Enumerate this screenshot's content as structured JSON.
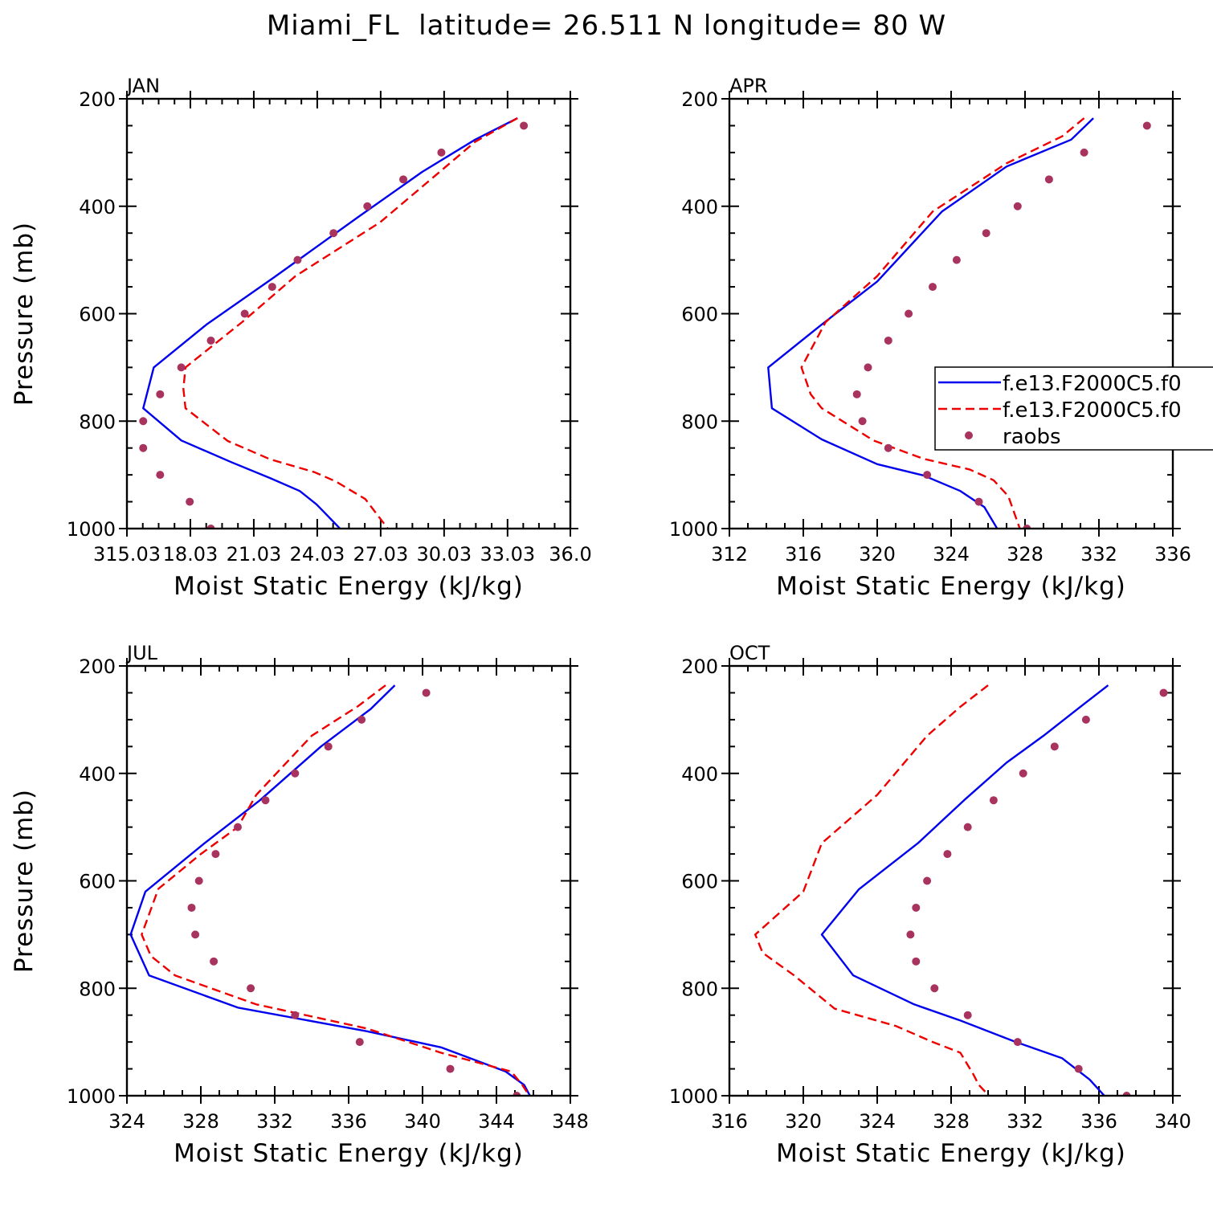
{
  "title": "Miami_FL  latitude= 26.511 N longitude= 80 W",
  "colors": {
    "model1": "#0000ee",
    "model2": "#ee0000",
    "raobs": "#a8335f"
  },
  "chart_data": [
    {
      "type": "line",
      "panel_label": "JAN",
      "xlabel": "Moist Static Energy (kJ/kg)",
      "ylabel": "Pressure (mb)",
      "xlim": [
        315.03,
        336.0
      ],
      "ylim": [
        200,
        1000
      ],
      "y_inverted": true,
      "xticks": [
        315.03,
        318.03,
        321.03,
        324.03,
        327.03,
        330.03,
        333.03,
        336.0
      ],
      "xtick_labels": [
        "315.03",
        "18.03",
        "21.03",
        "24.03",
        "27.03",
        "30.03",
        "33.03",
        "36.0"
      ],
      "yticks": [
        200,
        400,
        600,
        800,
        1000
      ],
      "series": [
        {
          "name": "f.e13.F2000C5.f0",
          "style": "solid",
          "color": "#0000ee",
          "x": [
            333.5,
            331.5,
            329.0,
            326.0,
            322.0,
            318.8,
            316.3,
            315.8,
            317.6,
            320.0,
            321.8,
            323.2,
            324.0,
            325.4
          ],
          "y": [
            236,
            276,
            336,
            419,
            532,
            620,
            700,
            776,
            836,
            877,
            906,
            930,
            955,
            1012
          ]
        },
        {
          "name": "f.e13.F2000C5.f0",
          "style": "dashed",
          "color": "#ee0000",
          "x": [
            333.5,
            331.5,
            330.0,
            327.0,
            323.0,
            320.5,
            317.8,
            317.7,
            317.8,
            319.8,
            321.8,
            323.9,
            324.9,
            326.3,
            327.6
          ],
          "y": [
            236,
            280,
            330,
            430,
            530,
            615,
            700,
            740,
            776,
            837,
            871,
            895,
            912,
            945,
            1012
          ]
        },
        {
          "name": "raobs",
          "style": "dots",
          "color": "#a8335f",
          "x": [
            333.8,
            329.9,
            328.1,
            326.4,
            324.8,
            323.1,
            321.9,
            320.6,
            319.0,
            317.6,
            316.6,
            315.8,
            315.8,
            316.6,
            318.0,
            319.0
          ],
          "y": [
            250,
            300,
            350,
            400,
            450,
            500,
            550,
            600,
            650,
            700,
            750,
            800,
            850,
            900,
            950,
            1000
          ]
        }
      ]
    },
    {
      "type": "line",
      "panel_label": "APR",
      "xlabel": "Moist Static Energy (kJ/kg)",
      "ylabel": "",
      "xlim": [
        312,
        336
      ],
      "ylim": [
        200,
        1000
      ],
      "y_inverted": true,
      "xticks": [
        312,
        316,
        320,
        324,
        328,
        332,
        336
      ],
      "xtick_labels": [
        "312",
        "316",
        "320",
        "324",
        "328",
        "332",
        "336"
      ],
      "yticks": [
        200,
        400,
        600,
        800,
        1000
      ],
      "series": [
        {
          "name": "f.e13.F2000C5.f0",
          "style": "solid",
          "color": "#0000ee",
          "x": [
            331.7,
            330.5,
            327.0,
            323.5,
            320.0,
            317.0,
            314.1,
            314.3,
            317.0,
            320.0,
            322.5,
            324.5,
            325.8,
            326.7
          ],
          "y": [
            236,
            276,
            326,
            410,
            540,
            620,
            700,
            776,
            834,
            880,
            901,
            930,
            960,
            1012
          ]
        },
        {
          "name": "f.e13.F2000C5.f0",
          "style": "dashed",
          "color": "#ee0000",
          "x": [
            331.2,
            330.0,
            327.0,
            323.0,
            320.0,
            317.2,
            315.9,
            316.4,
            317.0,
            319.8,
            322.5,
            325.0,
            326.3,
            327.1,
            327.8
          ],
          "y": [
            236,
            270,
            320,
            410,
            530,
            616,
            700,
            750,
            776,
            836,
            870,
            890,
            910,
            940,
            1008
          ]
        },
        {
          "name": "raobs",
          "style": "dots",
          "color": "#a8335f",
          "x": [
            334.6,
            331.2,
            329.3,
            327.6,
            325.9,
            324.3,
            323.0,
            321.7,
            320.6,
            319.5,
            318.9,
            319.2,
            320.6,
            322.7,
            325.5,
            328.1
          ],
          "y": [
            250,
            300,
            350,
            400,
            450,
            500,
            550,
            600,
            650,
            700,
            750,
            800,
            850,
            900,
            950,
            1000
          ]
        }
      ],
      "legend": {
        "position": "right",
        "entries": [
          {
            "label": "f.e13.F2000C5.f0",
            "style": "solid",
            "color": "#0000ee"
          },
          {
            "label": "f.e13.F2000C5.f0",
            "style": "dashed",
            "color": "#ee0000"
          },
          {
            "label": "raobs",
            "style": "dots",
            "color": "#a8335f"
          }
        ]
      }
    },
    {
      "type": "line",
      "panel_label": "JUL",
      "xlabel": "Moist Static Energy (kJ/kg)",
      "ylabel": "Pressure (mb)",
      "xlim": [
        324,
        348
      ],
      "ylim": [
        200,
        1000
      ],
      "y_inverted": true,
      "xticks": [
        324,
        328,
        332,
        336,
        340,
        344,
        348
      ],
      "xtick_labels": [
        "324",
        "328",
        "332",
        "336",
        "340",
        "344",
        "348"
      ],
      "yticks": [
        200,
        400,
        600,
        800,
        1000
      ],
      "series": [
        {
          "name": "f.e13.F2000C5.f0",
          "style": "solid",
          "color": "#0000ee",
          "x": [
            338.5,
            337.2,
            334.5,
            331.2,
            328.2,
            325.0,
            324.2,
            325.2,
            330.0,
            337.0,
            341.0,
            344.5,
            345.5,
            346.0
          ],
          "y": [
            236,
            280,
            350,
            450,
            530,
            620,
            700,
            776,
            836,
            880,
            910,
            955,
            980,
            1012
          ]
        },
        {
          "name": "f.e13.F2000C5.f0",
          "style": "dashed",
          "color": "#ee0000",
          "x": [
            338.0,
            336.5,
            334.0,
            331.0,
            330.0,
            328.0,
            325.7,
            324.8,
            325.3,
            326.6,
            331.0,
            337.0,
            341.0,
            344.8,
            345.4,
            346.0
          ],
          "y": [
            236,
            275,
            330,
            440,
            500,
            550,
            615,
            700,
            740,
            776,
            830,
            875,
            920,
            955,
            980,
            1012
          ]
        },
        {
          "name": "raobs",
          "style": "dots",
          "color": "#a8335f",
          "x": [
            340.2,
            336.7,
            334.9,
            333.1,
            331.5,
            330.0,
            328.8,
            327.9,
            327.5,
            327.7,
            328.7,
            330.7,
            333.1,
            336.6,
            341.5,
            345.1
          ],
          "y": [
            250,
            300,
            350,
            400,
            450,
            500,
            550,
            600,
            650,
            700,
            750,
            800,
            850,
            900,
            950,
            1000
          ]
        }
      ]
    },
    {
      "type": "line",
      "panel_label": "OCT",
      "xlabel": "Moist Static Energy (kJ/kg)",
      "ylabel": "",
      "xlim": [
        316,
        340
      ],
      "ylim": [
        200,
        1000
      ],
      "y_inverted": true,
      "xticks": [
        316,
        320,
        324,
        328,
        332,
        336,
        340
      ],
      "xtick_labels": [
        "316",
        "320",
        "324",
        "328",
        "332",
        "336",
        "340"
      ],
      "yticks": [
        200,
        400,
        600,
        800,
        1000
      ],
      "series": [
        {
          "name": "f.e13.F2000C5.f0",
          "style": "solid",
          "color": "#0000ee",
          "x": [
            336.5,
            335.0,
            333.0,
            331.0,
            328.7,
            326.2,
            323.0,
            321.0,
            322.7,
            326.0,
            328.5,
            331.5,
            334.0,
            335.5,
            336.5
          ],
          "y": [
            236,
            276,
            330,
            380,
            450,
            530,
            616,
            700,
            776,
            830,
            860,
            900,
            930,
            970,
            1008
          ]
        },
        {
          "name": "f.e13.F2000C5.f0",
          "style": "dashed",
          "color": "#ee0000",
          "x": [
            330.0,
            328.5,
            326.7,
            324.0,
            321.0,
            320.0,
            317.4,
            317.8,
            319.5,
            321.7,
            325.0,
            327.0,
            328.5,
            329.2,
            329.5,
            330.1
          ],
          "y": [
            236,
            276,
            330,
            440,
            530,
            620,
            700,
            734,
            776,
            838,
            870,
            900,
            920,
            960,
            980,
            1002
          ]
        },
        {
          "name": "raobs",
          "style": "dots",
          "color": "#a8335f",
          "x": [
            339.5,
            335.3,
            333.6,
            331.9,
            330.3,
            328.9,
            327.8,
            326.7,
            326.1,
            325.8,
            326.1,
            327.1,
            328.9,
            331.6,
            334.9,
            337.5
          ],
          "y": [
            250,
            300,
            350,
            400,
            450,
            500,
            550,
            600,
            650,
            700,
            750,
            800,
            850,
            900,
            950,
            1000
          ]
        }
      ]
    }
  ]
}
